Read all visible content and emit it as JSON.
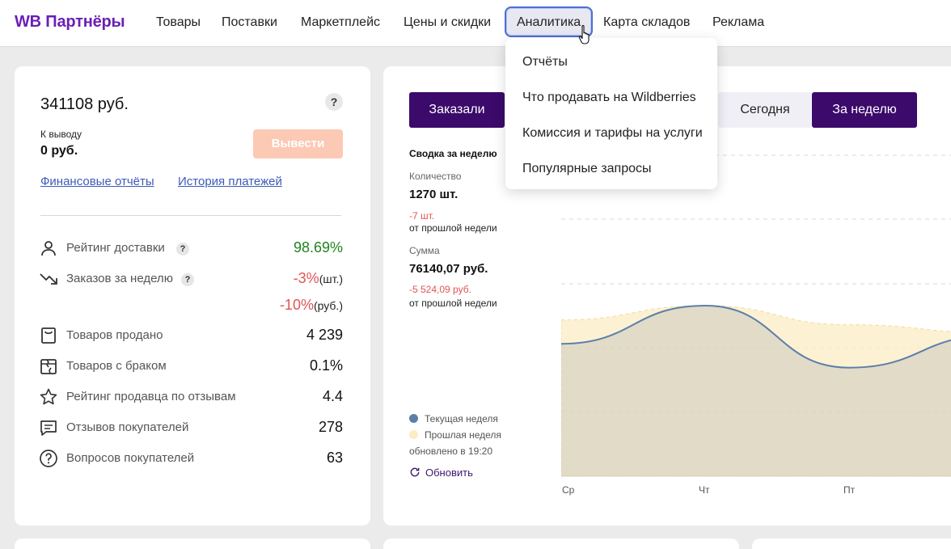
{
  "header": {
    "logo": "WB Партнёры",
    "nav": [
      "Товары",
      "Поставки",
      "Маркетплейс",
      "Цены и скидки",
      "Аналитика",
      "Карта складов",
      "Реклама"
    ],
    "active_nav": "Аналитика"
  },
  "dropdown": {
    "items": [
      "Отчёты",
      "Что продавать на Wildberries",
      "Комиссия и тарифы на услуги",
      "Популярные запросы"
    ]
  },
  "balance_card": {
    "balance": "341108 руб.",
    "help": "?",
    "withdraw_label": "К выводу",
    "withdraw_value": "0 руб.",
    "withdraw_button": "Вывести",
    "links": [
      "Финансовые отчёты",
      "История платежей"
    ],
    "stats": [
      {
        "label": "Рейтинг доставки",
        "value": "98.69%",
        "help": "?",
        "icon": "person-icon"
      },
      {
        "label": "Заказов за неделю",
        "value": "-3%",
        "unit": "(шт.)",
        "value2": "-10%",
        "unit2": "(руб.)",
        "help": "?",
        "icon": "trend-down-icon"
      },
      {
        "label": "Товаров продано",
        "value": "4 239",
        "icon": "bag-icon"
      },
      {
        "label": "Товаров с браком",
        "value": "0.1%",
        "icon": "broken-box-icon"
      },
      {
        "label": "Рейтинг продавца по отзывам",
        "value": "4.4",
        "icon": "star-icon"
      },
      {
        "label": "Отзывов покупателей",
        "value": "278",
        "icon": "comment-icon"
      },
      {
        "label": "Вопросов покупателей",
        "value": "63",
        "icon": "question-icon"
      }
    ]
  },
  "orders_card": {
    "tab_orders": "Заказали",
    "tab_today": "Сегодня",
    "tab_week": "За неделю",
    "summary_title": "Сводка за неделю",
    "count_label": "Количество",
    "count_value": "1270 шт.",
    "count_delta": "-7 шт.",
    "count_note": "от прошлой недели",
    "sum_label": "Сумма",
    "sum_value": "76140,07 руб.",
    "sum_delta": "-5 524,09 руб.",
    "sum_note": "от прошлой недели",
    "legend_current": "Текущая неделя",
    "legend_previous": "Прошлая неделя",
    "updated": "обновлено в 19:20",
    "refresh": "Обновить",
    "colors": {
      "current": "#5b7fa8",
      "previous": "#fcecc4"
    }
  },
  "chart_data": {
    "type": "area",
    "categories": [
      "Ср",
      "Чт",
      "Пт"
    ],
    "series": [
      {
        "name": "Текущая неделя",
        "values": [
          0.6,
          1.0,
          0.35
        ]
      },
      {
        "name": "Прошлая неделя",
        "values": [
          0.85,
          1.0,
          0.8
        ]
      }
    ],
    "grid": true
  }
}
